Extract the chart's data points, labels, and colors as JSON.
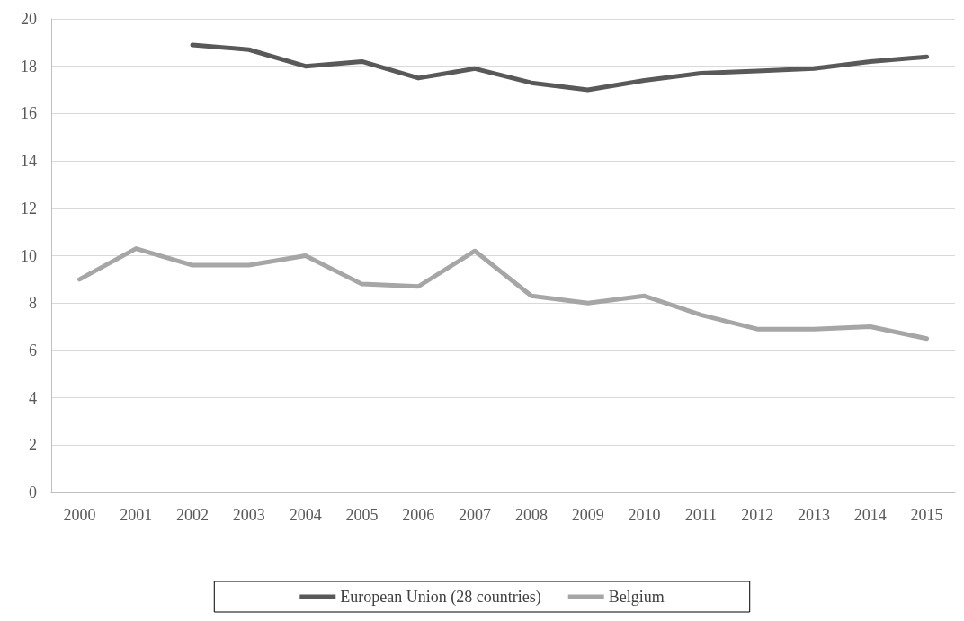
{
  "chart_data": {
    "type": "line",
    "categories": [
      "2000",
      "2001",
      "2002",
      "2003",
      "2004",
      "2005",
      "2006",
      "2007",
      "2008",
      "2009",
      "2010",
      "2011",
      "2012",
      "2013",
      "2014",
      "2015"
    ],
    "series": [
      {
        "name": "European Union (28 countries)",
        "color": "#595959",
        "values": [
          null,
          null,
          18.9,
          18.7,
          18.0,
          18.2,
          17.5,
          17.9,
          17.3,
          17.0,
          17.4,
          17.7,
          17.8,
          17.9,
          18.2,
          18.4
        ]
      },
      {
        "name": "Belgium",
        "color": "#a6a6a6",
        "values": [
          9.0,
          10.3,
          9.6,
          9.6,
          10.0,
          8.8,
          8.7,
          10.2,
          8.3,
          8.0,
          8.3,
          7.5,
          6.9,
          6.9,
          7.0,
          6.5
        ]
      }
    ],
    "ylim": [
      0,
      20
    ],
    "yticks": [
      0,
      2,
      4,
      6,
      8,
      10,
      12,
      14,
      16,
      18,
      20
    ],
    "grid": "y",
    "legend": "bottom",
    "marker": "none",
    "line_style": "solid"
  }
}
